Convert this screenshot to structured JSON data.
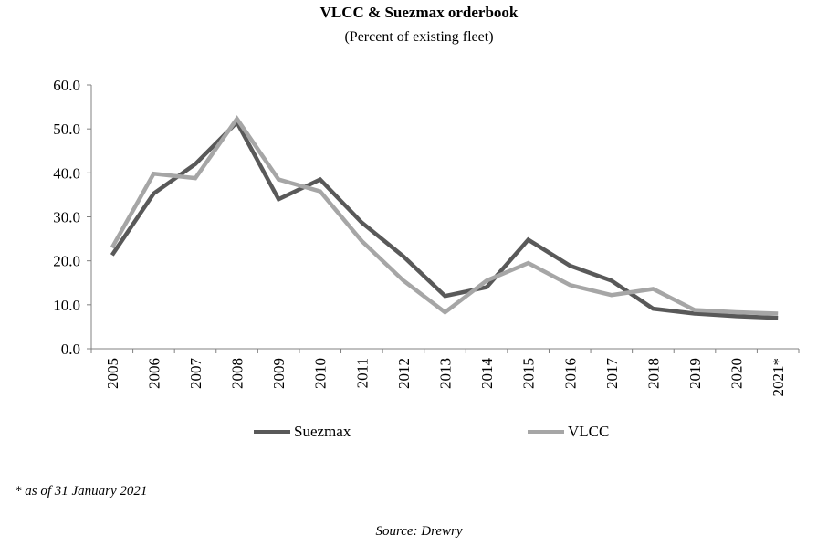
{
  "chart_data": {
    "type": "line",
    "title": "VLCC & Suezmax orderbook",
    "subtitle": "(Percent of existing fleet)",
    "x": [
      "2005",
      "2006",
      "2007",
      "2008",
      "2009",
      "2010",
      "2011",
      "2012",
      "2013",
      "2014",
      "2015",
      "2016",
      "2017",
      "2018",
      "2019",
      "2020",
      "2021*"
    ],
    "ylim": [
      0,
      60
    ],
    "yticks": [
      "0.0",
      "10.0",
      "20.0",
      "30.0",
      "40.0",
      "50.0",
      "60.0"
    ],
    "grid": false,
    "legend_position": "bottom",
    "series": [
      {
        "name": "Suezmax",
        "color": "#595959",
        "values": [
          21.3,
          35.3,
          42.0,
          51.5,
          34.0,
          38.5,
          28.7,
          21.0,
          12.0,
          14.0,
          24.8,
          18.9,
          15.5,
          9.1,
          8.0,
          7.4,
          7.0
        ]
      },
      {
        "name": "VLCC",
        "color": "#a6a6a6",
        "values": [
          23.0,
          39.8,
          38.8,
          52.3,
          38.5,
          35.8,
          24.5,
          15.5,
          8.3,
          15.5,
          19.5,
          14.5,
          12.2,
          13.6,
          8.8,
          8.3,
          8.0
        ]
      }
    ]
  },
  "footnote": "* as of 31 January 2021",
  "source": "Source: Drewry"
}
